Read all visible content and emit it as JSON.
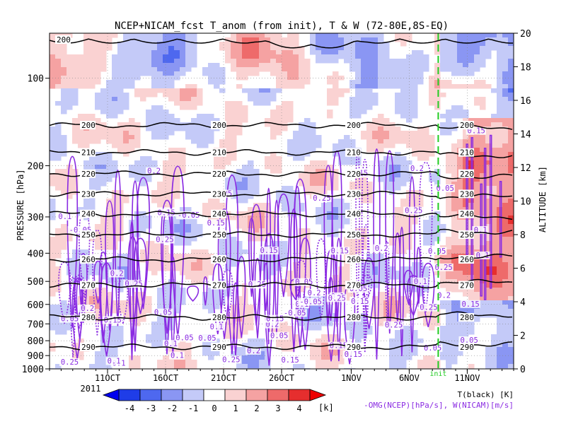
{
  "chart_data": {
    "type": "heatmap",
    "title": "NCEP+NICAM_fcst T_anom (from init), T & W  (72-80E,8S-EQ)",
    "ylabel_left": "PRESSURE [hPa]",
    "ylabel_right": "ALTITUDE [km]",
    "year_label": "2011",
    "x_ticks": [
      "11OCT",
      "16OCT",
      "21OCT",
      "26OCT",
      "1NOV",
      "6NOV",
      "11NOV"
    ],
    "x_tick_positions": [
      6,
      11,
      16,
      21,
      27,
      32,
      37
    ],
    "xlim": [
      1,
      41
    ],
    "pressure_ticks": [
      100,
      200,
      300,
      400,
      500,
      600,
      700,
      800,
      900,
      1000
    ],
    "ylim_pressure": [
      1000,
      70
    ],
    "altitude_ticks": [
      0,
      2,
      4,
      6,
      8,
      10,
      12,
      14,
      16,
      18,
      20
    ],
    "init_label": "init",
    "init_x": 34.5,
    "colorbar": {
      "ticks": [
        -4,
        -3,
        -2,
        -1,
        0,
        1,
        2,
        3,
        4
      ],
      "unit": "[k]",
      "colors": [
        "#1f3de8",
        "#4e68ef",
        "#8a96f3",
        "#c4caf8",
        "#ffffff",
        "#fad2d2",
        "#f5a2a2",
        "#ee6a6a",
        "#e62e2e"
      ]
    },
    "legend_lines": [
      "T(black) [K]",
      "-OMG(NCEP)[hPa/s], W(NICAM)[m/s]"
    ],
    "legend_colors": [
      "#000000",
      "#8a2be2"
    ],
    "isotherms": [
      {
        "label": "200",
        "p": 145
      },
      {
        "label": "210",
        "p": 180
      },
      {
        "label": "220",
        "p": 213
      },
      {
        "label": "230",
        "p": 250
      },
      {
        "label": "240",
        "p": 293
      },
      {
        "label": "250",
        "p": 345
      },
      {
        "label": "260",
        "p": 420
      },
      {
        "label": "270",
        "p": 515
      },
      {
        "label": "280",
        "p": 665
      },
      {
        "label": "290",
        "p": 840
      }
    ],
    "top_contour_label": "200",
    "omega_labels": [
      "0.05",
      "0.1",
      "0.15",
      "0.2",
      "0.25",
      "-0.05"
    ]
  }
}
